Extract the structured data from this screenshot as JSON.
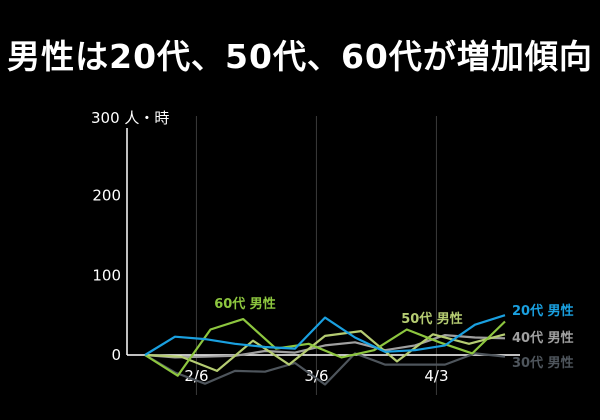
{
  "title": "男性は20代、50代、60代が増加傾向",
  "chart_data": {
    "type": "line",
    "unit": "人・時",
    "ylim": [
      0,
      300
    ],
    "y_ticks": [
      0,
      100,
      200,
      300
    ],
    "x_count": 22,
    "x_ticks": [
      {
        "index": 3,
        "label": "2/6"
      },
      {
        "index": 10,
        "label": "3/6"
      },
      {
        "index": 17,
        "label": "4/3"
      }
    ],
    "grid": "vertical lines at x tick dates",
    "series": [
      {
        "name": "20代 男性",
        "color": "#1aa0e0",
        "values": [
          0,
          23,
          20,
          14,
          10,
          8,
          47,
          22,
          4,
          6,
          12,
          38,
          50
        ]
      },
      {
        "name": "40代 男性",
        "color": "#a0a0a0",
        "values": [
          0,
          -3,
          -2,
          -1,
          5,
          3,
          12,
          16,
          6,
          12,
          25,
          22,
          21
        ]
      },
      {
        "name": "30代 男性",
        "color": "#4e555c",
        "values": [
          0,
          -22,
          -36,
          -20,
          -21,
          -10,
          -37,
          2,
          -12,
          -12,
          -12,
          2,
          -2
        ]
      },
      {
        "name": "60代 男性",
        "color": "#8dc63f",
        "values": [
          0,
          -26,
          32,
          45,
          8,
          14,
          -3,
          6,
          32,
          16,
          2,
          42
        ]
      },
      {
        "name": "50代 男性",
        "color": "#b5cc72",
        "values": [
          0,
          -2,
          -20,
          18,
          -12,
          24,
          30,
          -8,
          26,
          14,
          26
        ]
      }
    ],
    "annotations": [
      {
        "text": "60代 男性",
        "color": "#8dc63f"
      },
      {
        "text": "50代 男性",
        "color": "#b5cc72"
      }
    ]
  }
}
